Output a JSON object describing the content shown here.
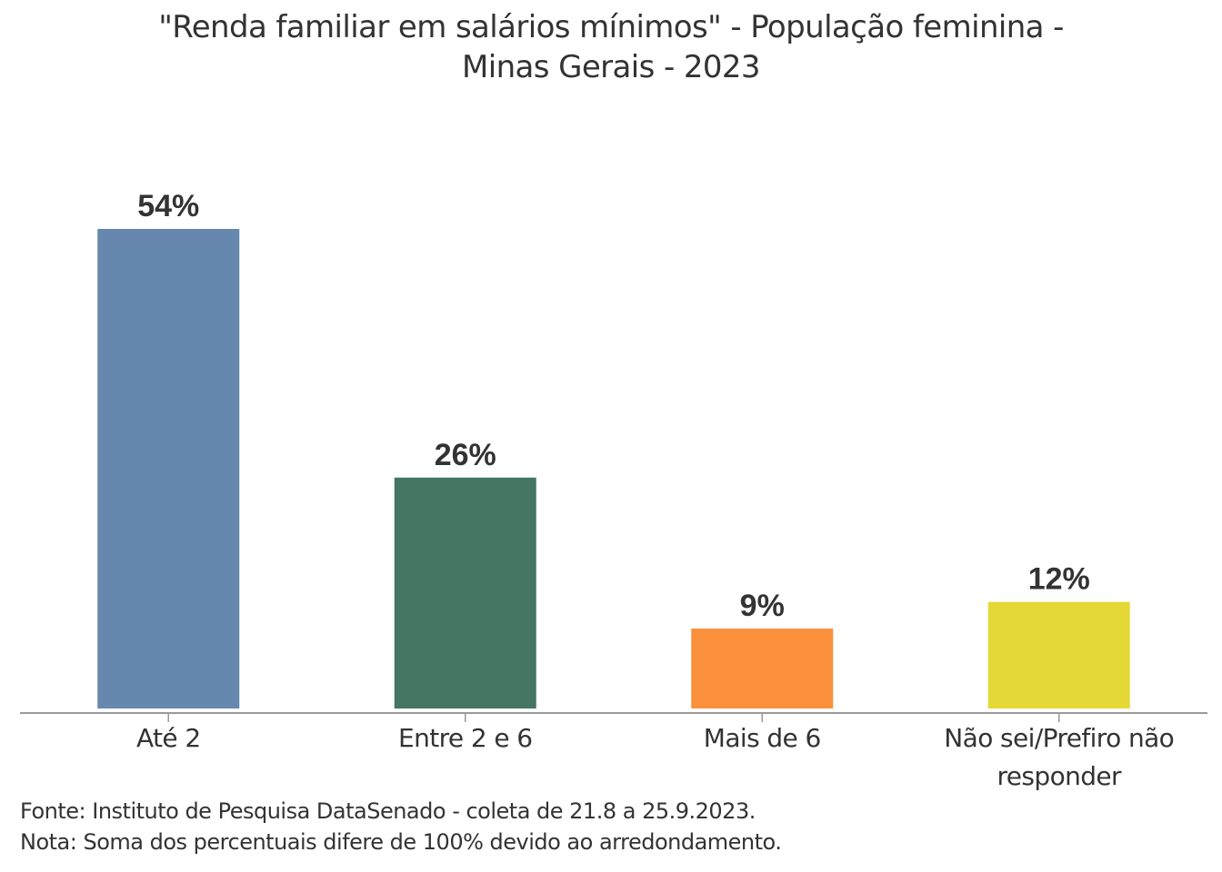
{
  "chart_data": {
    "type": "bar",
    "title_lines": [
      "\"Renda familiar em salários mínimos\" - População feminina -",
      "Minas Gerais - 2023"
    ],
    "categories": [
      "Até 2",
      "Entre 2 e 6",
      "Mais de 6",
      "Não sei/Prefiro não responder"
    ],
    "category_label_lines": [
      [
        "Até 2"
      ],
      [
        "Entre 2 e 6"
      ],
      [
        "Mais de 6"
      ],
      [
        "Não sei/Prefiro não",
        "responder"
      ]
    ],
    "values": [
      54,
      26,
      9,
      12
    ],
    "data_labels": [
      "54%",
      "26%",
      "9%",
      "12%"
    ],
    "colors": [
      "#6688ae",
      "#447663",
      "#fa903c",
      "#e4d837"
    ],
    "xlabel": "",
    "ylabel": "",
    "ylim": [
      0,
      54
    ],
    "unit": "%",
    "grid": false,
    "legend": "none"
  },
  "footer": {
    "source": "Fonte: Instituto de Pesquisa DataSenado - coleta de 21.8 a 25.9.2023.",
    "note": "Nota: Soma dos percentuais difere de 100% devido ao arredondamento."
  },
  "colors": {
    "axis": "#999999",
    "text": "#333333"
  }
}
